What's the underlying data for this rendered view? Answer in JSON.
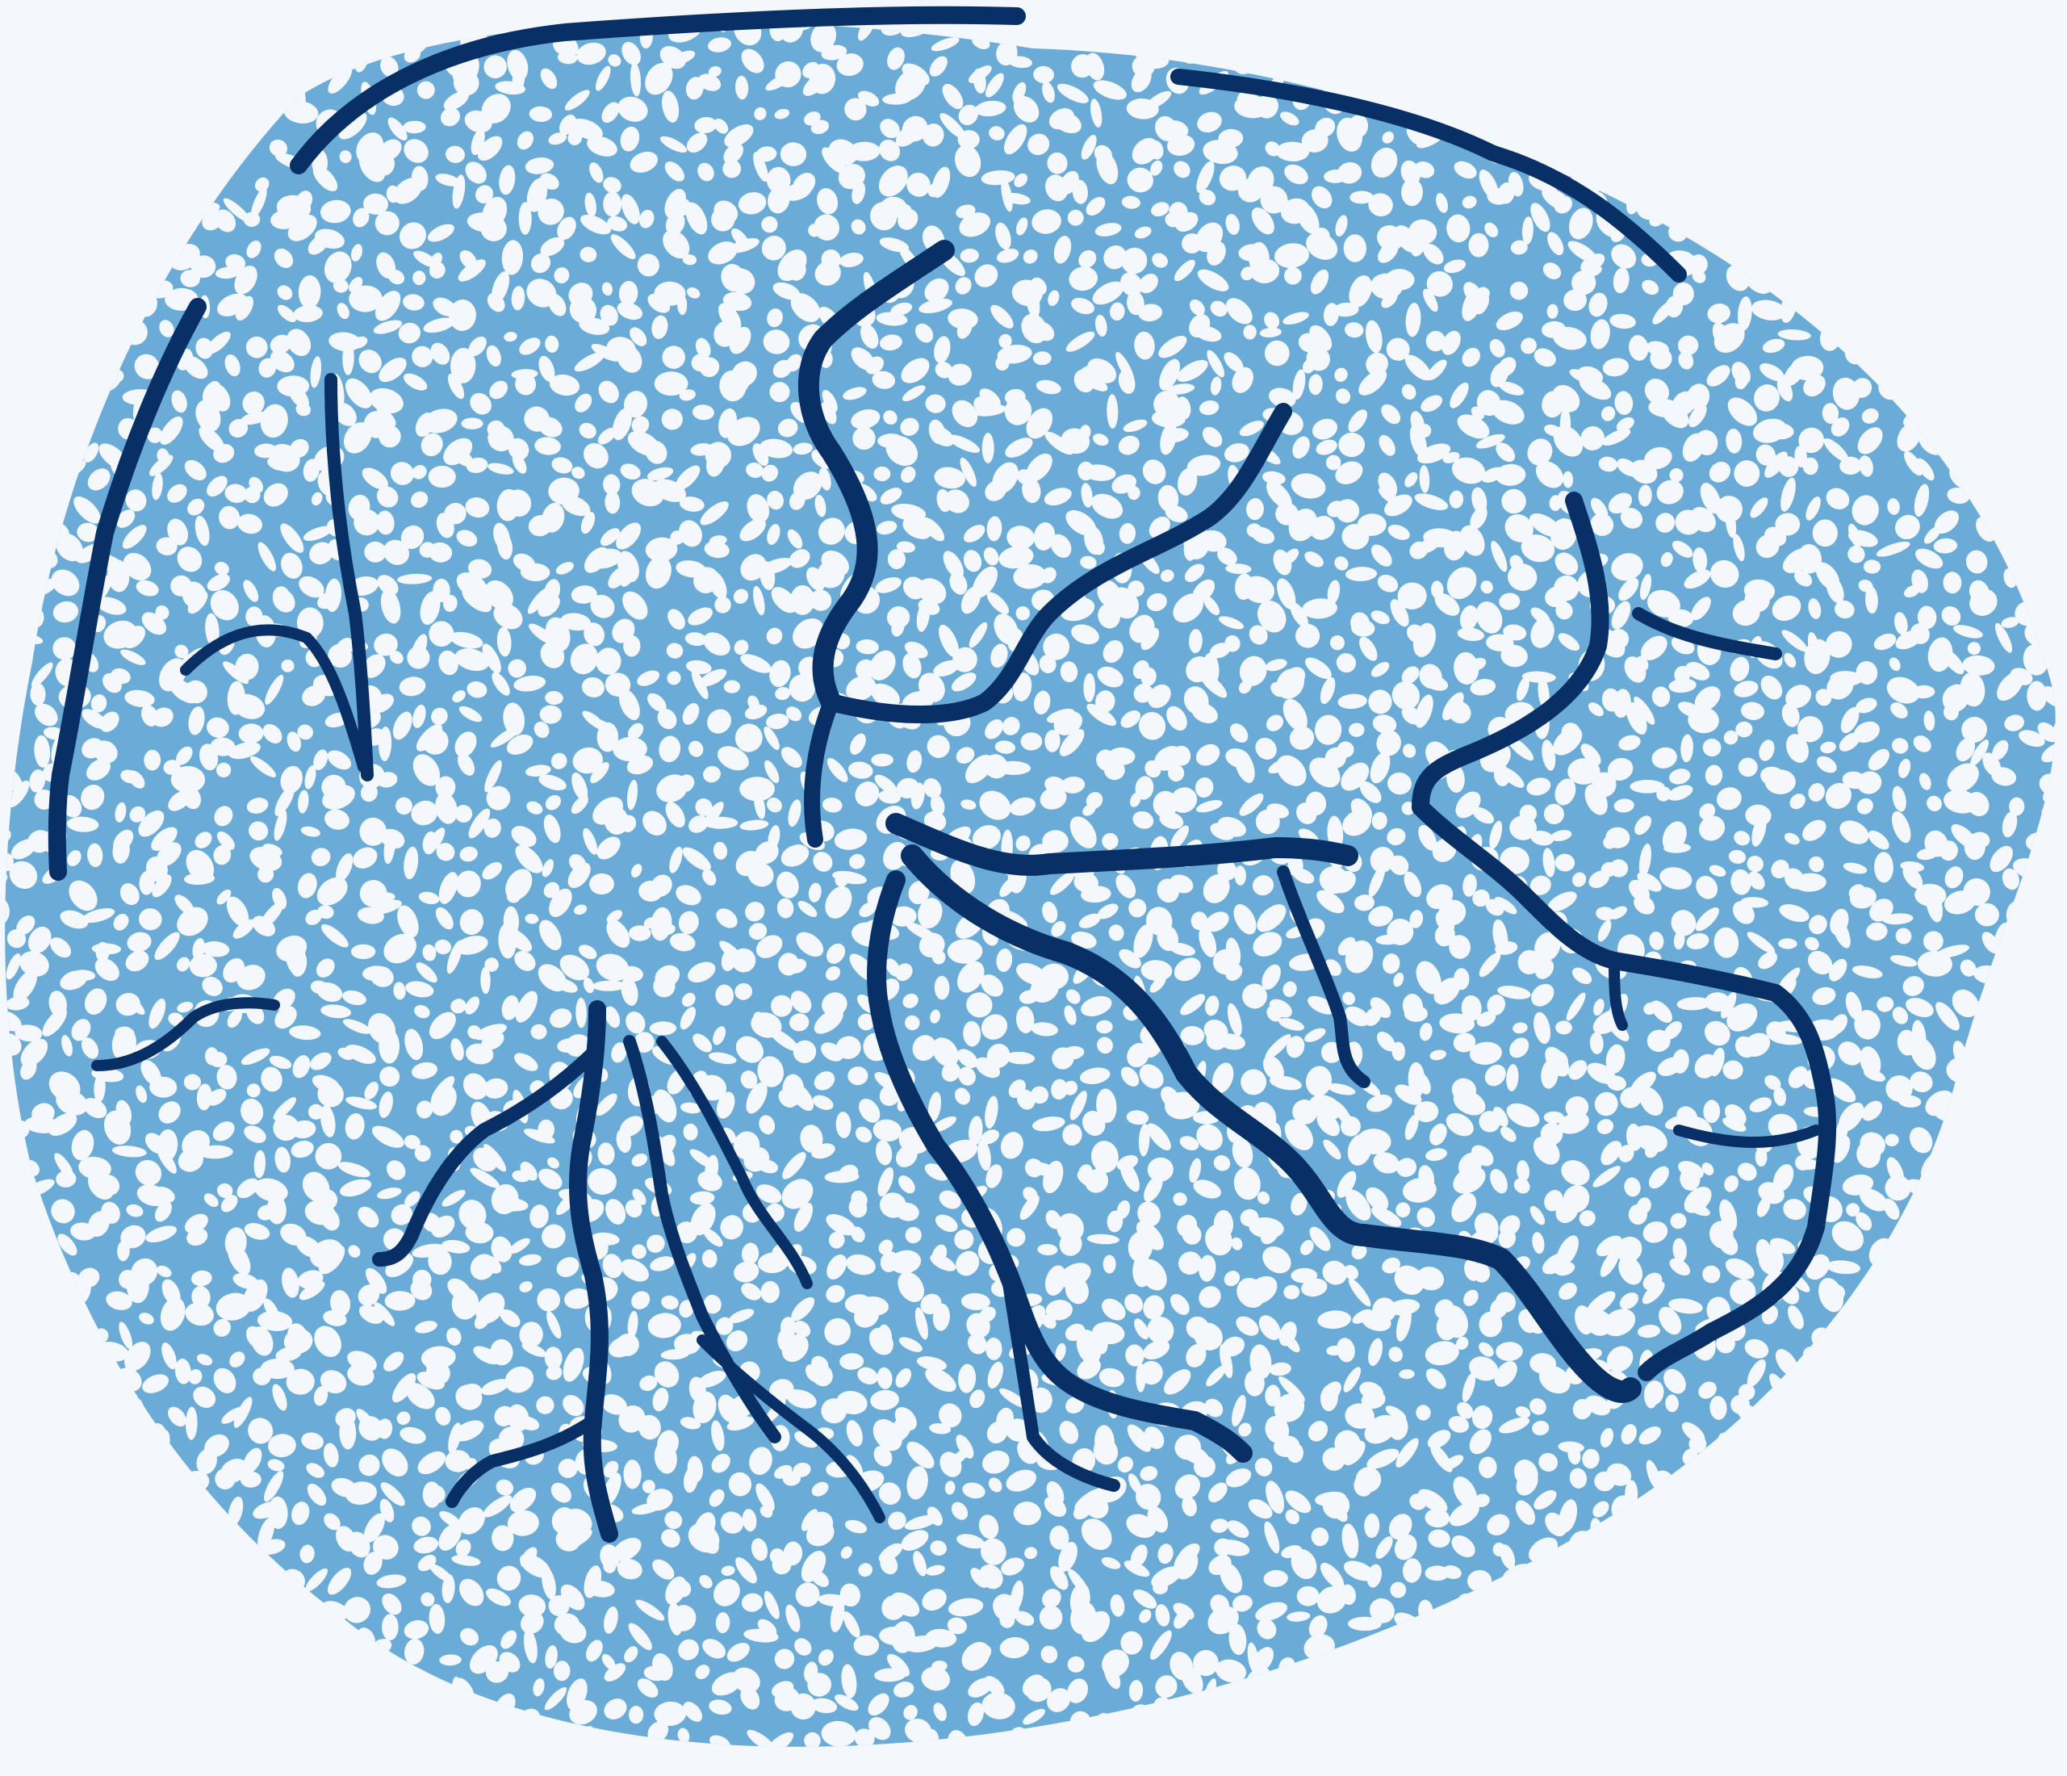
{
  "image": {
    "kind": "segmentation-mask",
    "subject": "tissue-cross-section",
    "colors": {
      "background": "#f4f8fd",
      "tissue_fill": "#6aabd8",
      "tissue_holes": "#f4f8fd",
      "vessels": "#083066"
    },
    "labels": []
  }
}
